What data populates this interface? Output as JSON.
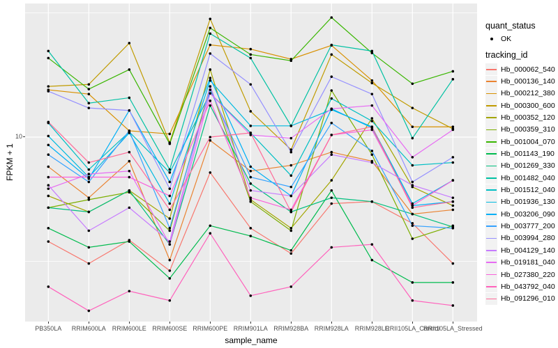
{
  "y_axis": {
    "title": "FPKM + 1",
    "tick_label": "10"
  },
  "x_axis": {
    "title": "sample_name"
  },
  "legend": {
    "quant_status_title": "quant_status",
    "quant_status_ok_label": "OK",
    "tracking_title": "tracking_id"
  },
  "colors": {
    "panel_bg": "#EBEBEB",
    "grid": "#FFFFFF",
    "point": "#000000",
    "axis_text": "#4D4D4D",
    "legend_key_bg": "#F2F2F2"
  },
  "chart_data": {
    "type": "line",
    "yscale": "log10",
    "ylabel": "FPKM + 1",
    "xlabel": "sample_name",
    "y_major_ticks": [
      10
    ],
    "y_minor_ticks": [
      31.62,
      3.162
    ],
    "ylim_approx": [
      1.85,
      34
    ],
    "grid": "white-on-gray",
    "legend_position": "right",
    "point_marker": "black-dot",
    "x": [
      "PB350LA",
      "RRIM600LA",
      "RRIM600LE",
      "RRIM600SE",
      "RRIM600PE",
      "RRIM901LA",
      "RRIM928BA",
      "RRIM928LA",
      "RRIM928LE",
      "RRII105LA_Control",
      "RRII105LA_Stressed"
    ],
    "series": [
      {
        "name": "Hb_000062_540",
        "color": "#F8766D",
        "values": [
          3.8,
          3.1,
          3.85,
          2.9,
          7.2,
          4.3,
          3.4,
          5.4,
          5.5,
          4.5,
          3.1
        ]
      },
      {
        "name": "Hb_000136_140",
        "color": "#EA8331",
        "values": [
          7.6,
          5.7,
          8.0,
          3.2,
          9.7,
          7.3,
          7.7,
          8.7,
          8.0,
          4.9,
          5.1
        ]
      },
      {
        "name": "Hb_000212_380",
        "color": "#D89000",
        "values": [
          15.5,
          14.9,
          10.6,
          10.3,
          23.5,
          22.6,
          20.6,
          23.4,
          16.9,
          11.0,
          11.0
        ]
      },
      {
        "name": "Hb_000300_600",
        "color": "#C09B00",
        "values": [
          16.0,
          16.3,
          23.9,
          9.5,
          29.9,
          12.7,
          8.9,
          21.5,
          16.5,
          13.1,
          10.8
        ]
      },
      {
        "name": "Hb_000352_120",
        "color": "#A3A500",
        "values": [
          5.8,
          5.0,
          6.1,
          4.7,
          18.7,
          5.6,
          4.3,
          6.7,
          11.9,
          6.3,
          5.3
        ]
      },
      {
        "name": "Hb_000359_310",
        "color": "#7CAE00",
        "values": [
          5.2,
          5.6,
          6.0,
          4.2,
          16.0,
          5.5,
          4.2,
          15.4,
          8.5,
          3.9,
          4.4
        ]
      },
      {
        "name": "Hb_001004_070",
        "color": "#39B600",
        "values": [
          20.8,
          15.6,
          18.7,
          9.4,
          27.5,
          21.5,
          20.3,
          30.3,
          21.8,
          16.4,
          18.4
        ]
      },
      {
        "name": "Hb_001143_190",
        "color": "#00BB4E",
        "values": [
          4.3,
          3.6,
          3.8,
          2.7,
          4.4,
          4.0,
          3.5,
          6.1,
          3.2,
          2.6,
          2.6
        ]
      },
      {
        "name": "Hb_001269_330",
        "color": "#00BF7D",
        "values": [
          5.2,
          5.0,
          6.1,
          3.7,
          13.4,
          6.5,
          5.0,
          5.7,
          5.5,
          4.9,
          4.35
        ]
      },
      {
        "name": "Hb_001482_040",
        "color": "#00C1A3",
        "values": [
          22.2,
          13.7,
          14.4,
          7.4,
          26.1,
          20.8,
          11.1,
          23.5,
          22.2,
          9.9,
          17.1
        ]
      },
      {
        "name": "Hb_001512_040",
        "color": "#00BFC4",
        "values": [
          11.4,
          7.4,
          10.5,
          7.2,
          15.0,
          10.4,
          7.0,
          14.3,
          11.6,
          7.7,
          7.9
        ]
      },
      {
        "name": "Hb_001936_130",
        "color": "#00BAE0",
        "values": [
          10.1,
          6.9,
          10.4,
          5.4,
          16.9,
          11.1,
          11.1,
          12.9,
          11.0,
          5.4,
          6.7
        ]
      },
      {
        "name": "Hb_003206_090",
        "color": "#00B0F6",
        "values": [
          9.3,
          6.8,
          12.8,
          6.6,
          17.3,
          7.6,
          5.8,
          13.0,
          10.9,
          5.3,
          5.5
        ]
      },
      {
        "name": "Hb_003777_200",
        "color": "#35A2FF",
        "values": [
          8.5,
          6.6,
          10.6,
          4.3,
          15.5,
          6.9,
          6.3,
          11.4,
          8.8,
          4.4,
          4.3
        ]
      },
      {
        "name": "Hb_003994_280",
        "color": "#9590FF",
        "values": [
          15.3,
          13.1,
          12.8,
          6.2,
          21.7,
          16.3,
          8.7,
          17.5,
          14.9,
          6.6,
          8.3
        ]
      },
      {
        "name": "Hb_004129_140",
        "color": "#C77CFF",
        "values": [
          6.4,
          4.2,
          5.2,
          3.8,
          16.0,
          6.1,
          5.8,
          8.5,
          7.9,
          6.4,
          5.7
        ]
      },
      {
        "name": "Hb_019181_040",
        "color": "#E76BF3",
        "values": [
          6.2,
          7.1,
          7.3,
          3.7,
          15.0,
          10.2,
          9.9,
          13.0,
          13.4,
          8.3,
          10.7
        ]
      },
      {
        "name": "Hb_027380_220",
        "color": "#FA62DB",
        "values": [
          6.9,
          6.9,
          6.9,
          5.8,
          14.0,
          5.7,
          5.1,
          10.2,
          10.7,
          5.3,
          6.7
        ]
      },
      {
        "name": "Hb_043792_040",
        "color": "#FF62BC",
        "values": [
          2.5,
          2.0,
          2.4,
          2.2,
          4.1,
          2.3,
          2.5,
          3.6,
          3.7,
          2.2,
          2.1
        ]
      },
      {
        "name": "Hb_091296_010",
        "color": "#FF6A98",
        "values": [
          11.5,
          7.9,
          8.7,
          5.1,
          10.0,
          10.4,
          5.0,
          10.2,
          11.0,
          5.2,
          5.5
        ]
      }
    ]
  }
}
